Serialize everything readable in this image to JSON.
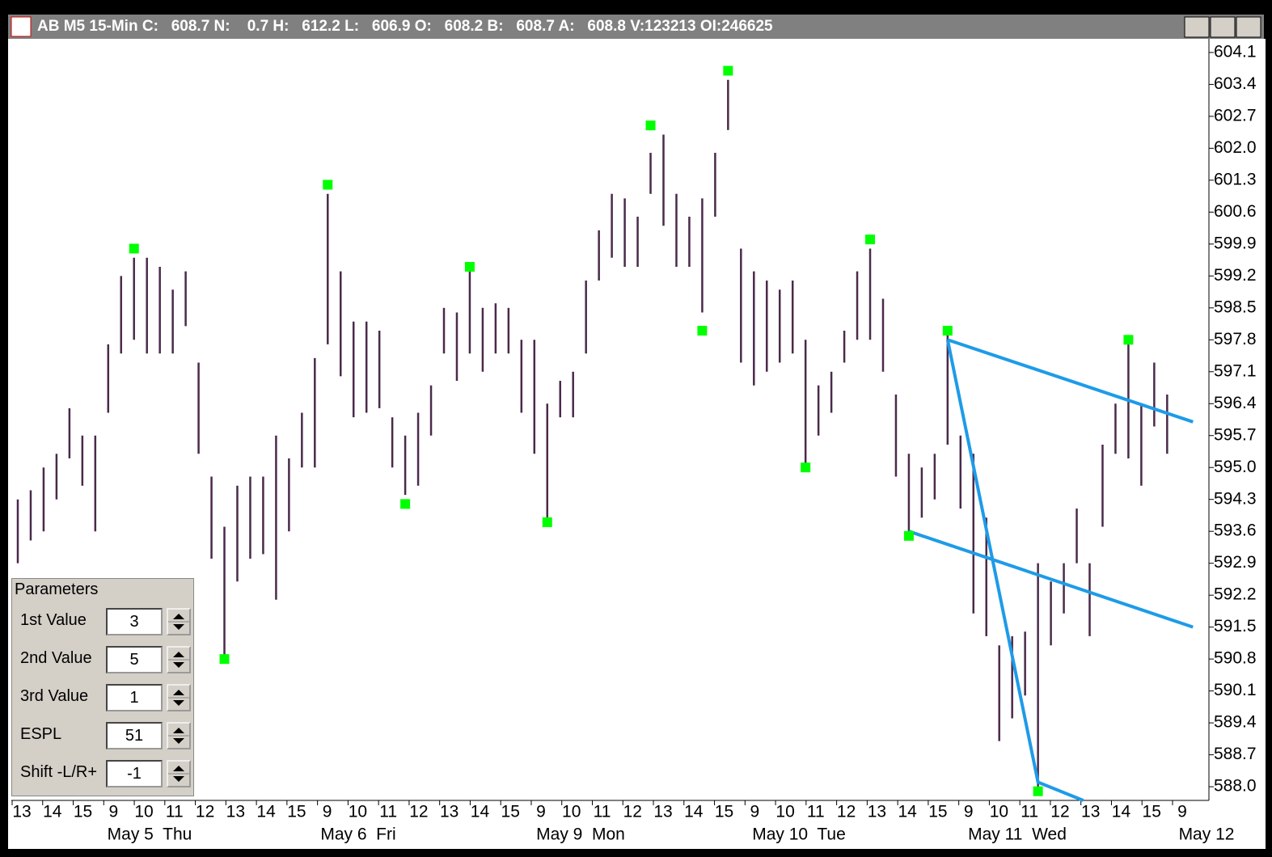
{
  "window": {
    "title": "AB M5 15-Min C:   608.7 N:    0.7 H:   612.2 L:   606.9 O:   608.2 B:   608.7 A:   608.8 V:123213 OI:246625"
  },
  "parameters": {
    "title": "Parameters",
    "rows": [
      {
        "label": "1st Value",
        "value": "3"
      },
      {
        "label": "2nd Value",
        "value": "5"
      },
      {
        "label": "3rd Value",
        "value": "1"
      },
      {
        "label": "ESPL",
        "value": "51"
      },
      {
        "label": "Shift -L/R+",
        "value": "-1"
      }
    ]
  },
  "chart_data": {
    "type": "ohlc",
    "color": "#4a2a4a",
    "categories": [
      "13",
      "14",
      "15",
      "9",
      "10",
      "11",
      "12",
      "13",
      "14",
      "15",
      "9",
      "10",
      "11",
      "12",
      "13",
      "14",
      "15",
      "9",
      "10",
      "11",
      "12",
      "13",
      "14",
      "15",
      "9",
      "10",
      "11",
      "12",
      "13",
      "14",
      "15",
      "9",
      "10",
      "11",
      "12",
      "13",
      "14",
      "15",
      "9"
    ],
    "days": [
      "May 5  Thu",
      "May 6  Fri",
      "May 9  Mon",
      "May 10  Tue",
      "May 11  Wed",
      "May 12"
    ],
    "high": [
      594.3,
      594.5,
      595.0,
      595.3,
      596.3,
      595.7,
      595.7,
      597.7,
      599.2,
      599.6,
      599.6,
      599.4,
      598.9,
      599.3,
      597.3,
      594.8,
      593.7,
      594.6,
      594.8,
      594.8,
      595.7,
      595.2,
      596.2,
      597.4,
      601.0,
      599.3,
      598.2,
      598.2,
      598.0,
      596.1,
      595.7,
      596.2,
      596.8,
      598.5,
      598.4,
      599.3,
      598.5,
      598.6,
      598.5,
      597.8,
      597.8,
      596.4,
      596.9,
      597.1,
      599.1,
      600.2,
      601.0,
      600.9,
      600.5,
      601.9,
      602.3,
      601.0,
      600.5,
      600.9,
      601.9,
      603.5,
      599.8,
      599.3,
      599.1,
      598.9,
      599.1,
      597.8,
      596.8,
      597.1,
      598.0,
      599.3,
      599.8,
      598.7,
      596.6,
      595.3,
      595.0,
      595.3,
      598.0,
      595.7,
      595.3,
      593.9,
      591.1,
      591.3,
      591.4,
      592.9,
      592.5,
      592.9,
      594.1,
      592.9,
      595.5,
      596.4,
      597.7,
      596.4,
      597.3,
      596.6
    ],
    "low": [
      592.9,
      593.4,
      593.6,
      594.3,
      595.2,
      594.6,
      593.6,
      596.2,
      597.5,
      597.8,
      597.5,
      597.5,
      597.5,
      598.1,
      595.3,
      593.0,
      590.7,
      592.5,
      593.0,
      593.1,
      592.1,
      593.6,
      595.0,
      595.0,
      597.7,
      597.0,
      596.1,
      596.2,
      596.3,
      595.0,
      594.4,
      594.6,
      595.7,
      597.5,
      596.9,
      597.5,
      597.1,
      597.5,
      597.5,
      596.2,
      595.3,
      593.9,
      596.1,
      596.1,
      597.5,
      599.1,
      599.6,
      599.4,
      599.4,
      601.0,
      600.3,
      599.4,
      599.4,
      598.4,
      600.5,
      602.4,
      597.3,
      596.8,
      597.1,
      597.3,
      597.5,
      595.1,
      595.7,
      596.2,
      597.3,
      597.8,
      597.8,
      597.1,
      594.8,
      593.6,
      593.9,
      594.3,
      595.5,
      594.1,
      591.8,
      591.3,
      589.0,
      589.5,
      590.0,
      588.0,
      591.1,
      591.8,
      592.9,
      591.3,
      593.7,
      595.3,
      595.2,
      594.6,
      595.9,
      595.3
    ],
    "pivots": [
      null,
      null,
      null,
      null,
      null,
      null,
      null,
      null,
      null,
      599.8,
      null,
      null,
      null,
      null,
      null,
      null,
      590.8,
      null,
      null,
      null,
      null,
      null,
      null,
      null,
      601.2,
      null,
      null,
      null,
      null,
      null,
      594.2,
      null,
      null,
      null,
      null,
      599.4,
      null,
      null,
      null,
      null,
      null,
      593.8,
      null,
      null,
      null,
      null,
      null,
      null,
      null,
      602.5,
      null,
      null,
      null,
      598.0,
      null,
      603.7,
      null,
      null,
      null,
      null,
      null,
      595.0,
      null,
      null,
      null,
      null,
      600.0,
      null,
      null,
      593.5,
      null,
      null,
      598.0,
      null,
      null,
      null,
      null,
      null,
      null,
      587.9,
      null,
      null,
      null,
      null,
      null,
      null,
      597.8,
      null,
      null,
      null
    ],
    "pivot_color": "#00ff00",
    "lines": [
      {
        "x": [
          72,
          91
        ],
        "values": [
          597.8,
          596.0
        ]
      },
      {
        "x": [
          69,
          91
        ],
        "values": [
          593.6,
          591.5
        ]
      },
      {
        "x": [
          72,
          79,
          82.5
        ],
        "values": [
          597.8,
          588.1,
          587.7
        ]
      }
    ],
    "line_color": "#1e9be8",
    "ylim": [
      587.7,
      604.4
    ],
    "yticks": [
      604.1,
      603.4,
      602.7,
      {
        "value": 602.0,
        "label": "602.0"
      },
      601.3,
      600.6,
      599.9,
      599.2,
      598.5,
      597.8,
      597.1,
      596.4,
      595.7,
      {
        "value": 595.0,
        "label": "595.0"
      },
      594.3,
      593.6,
      592.9,
      592.2,
      591.5,
      590.8,
      590.1,
      589.4,
      588.7,
      {
        "value": 588.0,
        "label": "588.0"
      }
    ]
  }
}
